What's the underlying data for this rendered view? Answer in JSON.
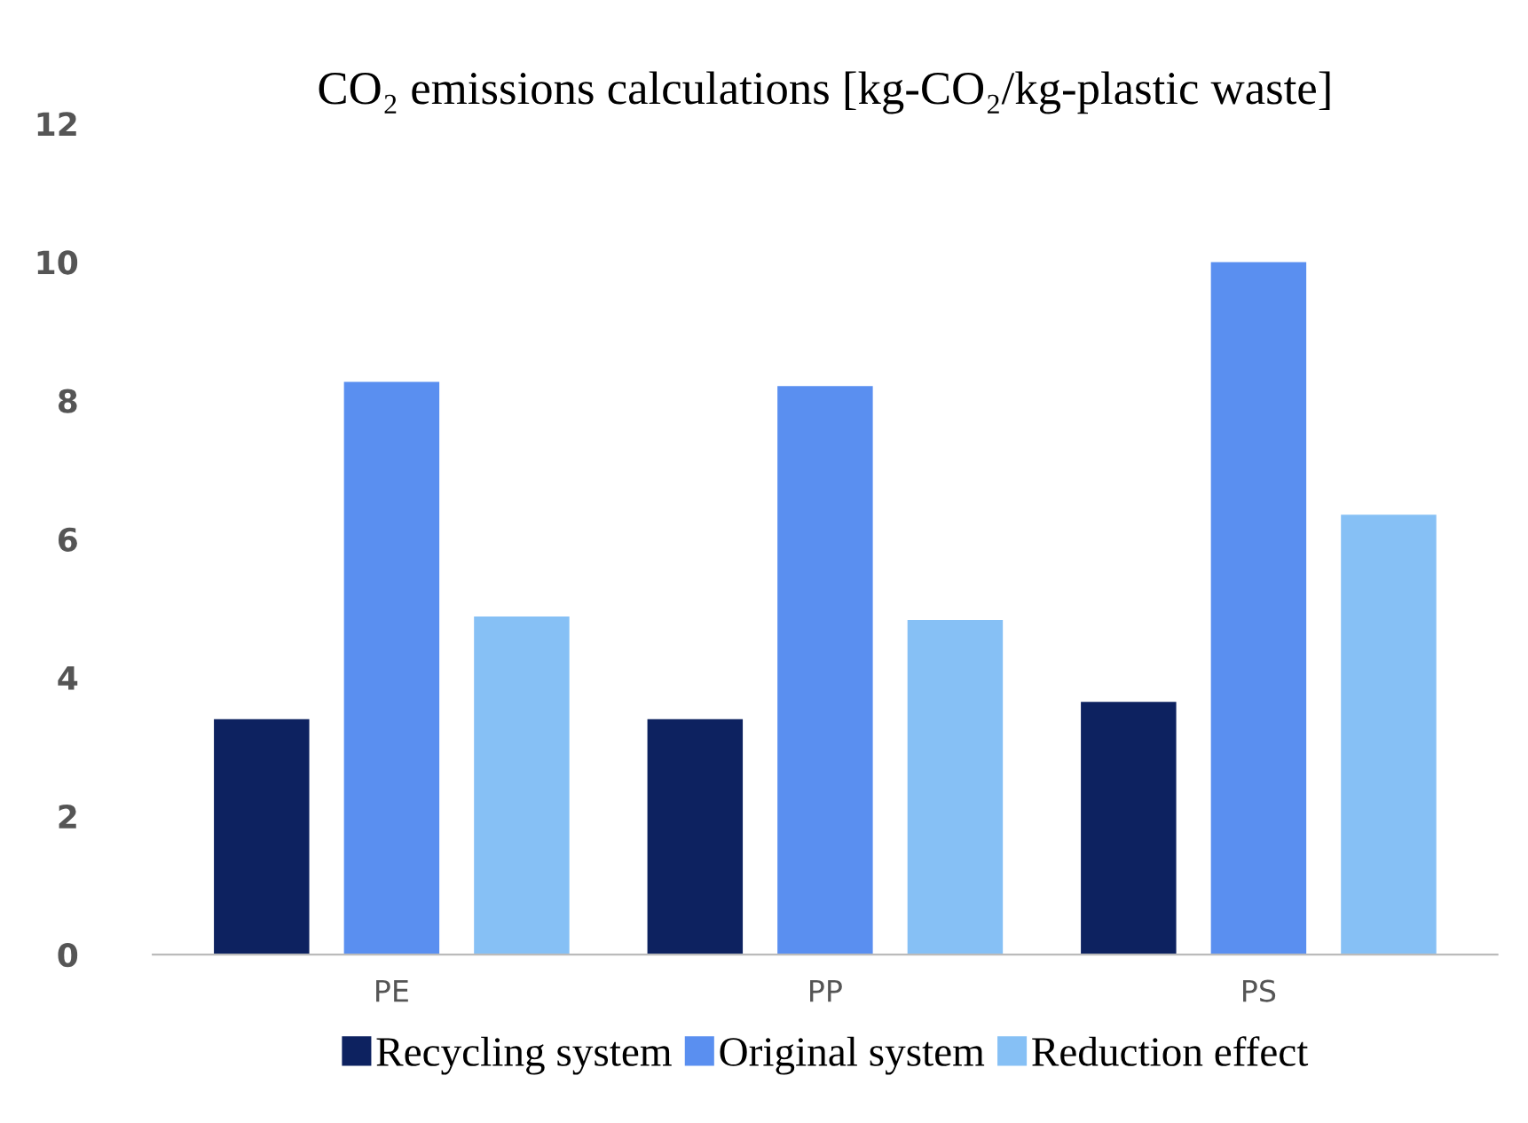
{
  "chart_data": {
    "type": "bar",
    "title": "CO₂ emissions calculations [kg-CO₂/kg-plastic waste]",
    "categories": [
      "PE",
      "PP",
      "PS"
    ],
    "series": [
      {
        "name": "Recycling system",
        "color": "#0d2260",
        "values": [
          3.4,
          3.4,
          3.65
        ]
      },
      {
        "name": "Original system",
        "color": "#5a8ff0",
        "values": [
          8.27,
          8.21,
          10.0
        ]
      },
      {
        "name": "Reduction effect",
        "color": "#86c0f5",
        "values": [
          4.88,
          4.83,
          6.35
        ]
      }
    ],
    "ylim": [
      0,
      12
    ],
    "yticks": [
      0,
      2,
      4,
      6,
      8,
      10,
      12
    ],
    "grid": false,
    "legend": "bottom"
  }
}
